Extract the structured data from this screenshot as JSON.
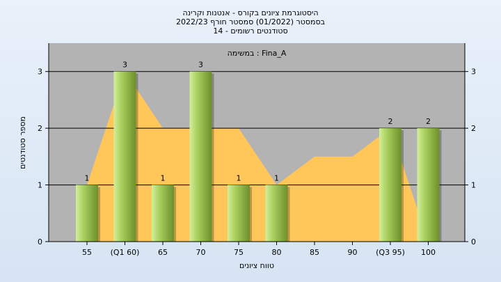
{
  "chart_data": {
    "type": "bar",
    "title_lines": [
      "היסטוגרמת ציונים בקורס - אנטנות וקרינה",
      "בסמסטר  (01/2022)  סמסטר חורף 2022/23",
      "סטודנטים רשומים - 14"
    ],
    "subtitle": "במשימה : Fina_A",
    "xlabel": "טווח ציונים",
    "ylabel": "מספר סטודנטים",
    "categories": [
      "55",
      "(Q1 60)",
      "65",
      "70",
      "75",
      "80",
      "85",
      "90",
      "(Q3 95)",
      "100"
    ],
    "series": [
      {
        "values": [
          1,
          3,
          1,
          3,
          1,
          1,
          0,
          0,
          2,
          2
        ]
      }
    ],
    "data_labels": [
      "1",
      "3",
      "1",
      "3",
      "1",
      "1",
      "",
      "",
      "2",
      "2"
    ],
    "background_area": [
      1,
      3,
      2,
      2,
      2,
      1,
      1.5,
      1.5,
      2,
      0
    ],
    "yticks": [
      0,
      1,
      2,
      3
    ],
    "ylim": [
      0,
      3.5
    ],
    "grid": true,
    "colors": {
      "plot_bg": "#b3b3b3",
      "area": "#ffc65a",
      "bar_light": "#d4ef9a",
      "bar_mid": "#a8cf5e",
      "bar_dark": "#6d8f2a",
      "grid": "#000000"
    }
  }
}
